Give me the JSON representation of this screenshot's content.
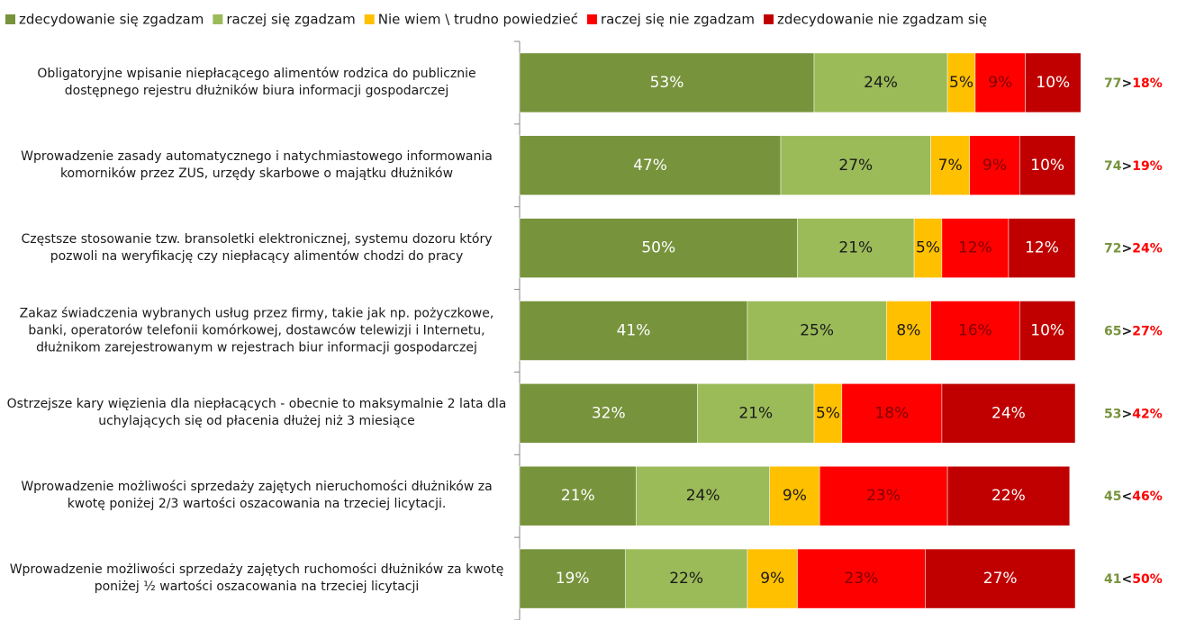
{
  "chart_data": {
    "type": "stacked_barh",
    "categories": [
      "Obligatoryjne wpisanie niepłacącego alimentów rodzica do publicznie dostępnego rejestru dłużników biura informacji gospodarczej",
      "Wprowadzenie zasady automatycznego i natychmiastowego informowania komorników przez ZUS, urzędy skarbowe o majątku dłużników",
      "Częstsze stosowanie tzw. bransoletki elektronicznej, systemu dozoru który pozwoli na weryfikację czy niepłacący alimentów chodzi do pracy",
      "Zakaz świadczenia wybranych usług przez firmy, takie jak np. pożyczkowe, banki, operatorów telefonii komórkowej, dostawców telewizji i Internetu, dłużnikom zarejestrowanym w rejestrach biur informacji gospodarczej",
      "Ostrzejsze kary  więzienia dla niepłacących - obecnie to maksymalnie 2 lata dla uchylających się od płacenia dłużej niż 3 miesiące",
      "Wprowadzenie możliwości sprzedaży zajętych nieruchomości dłużników za kwotę poniżej 2/3 wartości oszacowania na trzeciej licytacji.",
      "Wprowadzenie możliwości sprzedaży zajętych ruchomości dłużników za kwotę poniżej ½ wartości oszacowania na trzeciej licytacji"
    ],
    "series": [
      {
        "name": "zdecydowanie się zgadzam",
        "color": "#77933c",
        "label_color": "#ffffff",
        "values": [
          53,
          47,
          50,
          41,
          32,
          21,
          19
        ],
        "value_labels": [
          "53%",
          "47%",
          "50%",
          "41%",
          "32%",
          "21%",
          "19%"
        ]
      },
      {
        "name": "raczej się zgadzam",
        "color": "#9bbb59",
        "label_color": "#1a1a1a",
        "values": [
          24,
          27,
          21,
          25,
          21,
          24,
          22
        ],
        "value_labels": [
          "24%",
          "27%",
          "21%",
          "25%",
          "21%",
          "24%",
          "22%"
        ]
      },
      {
        "name": "Nie wiem \\ trudno powiedzieć",
        "color": "#ffc000",
        "label_color": "#1a1a1a",
        "values": [
          5,
          7,
          5,
          8,
          5,
          9,
          9
        ],
        "value_labels": [
          "5%",
          "7%",
          "5%",
          "8%",
          "5%",
          "9%",
          "9%"
        ]
      },
      {
        "name": "raczej się nie zgadzam",
        "color": "#ff0000",
        "label_color": "#7f0000",
        "values": [
          9,
          9,
          12,
          16,
          18,
          23,
          23
        ],
        "value_labels": [
          "9%",
          "9%",
          "12%",
          "16%",
          "18%",
          "23%",
          "23%"
        ]
      },
      {
        "name": "zdecydowanie nie zgadzam się",
        "color": "#c00000",
        "label_color": "#ffffff",
        "values": [
          10,
          10,
          12,
          10,
          24,
          22,
          27
        ],
        "value_labels": [
          "10%",
          "10%",
          "12%",
          "10%",
          "24%",
          "22%",
          "27%"
        ]
      }
    ],
    "xlim": [
      0,
      100
    ],
    "net": [
      {
        "agree": 77,
        "sign": ">",
        "disagree": "18%"
      },
      {
        "agree": 74,
        "sign": ">",
        "disagree": "19%"
      },
      {
        "agree": 72,
        "sign": ">",
        "disagree": "24%"
      },
      {
        "agree": 65,
        "sign": ">",
        "disagree": "27%"
      },
      {
        "agree": 53,
        "sign": ">",
        "disagree": "42%"
      },
      {
        "agree": 45,
        "sign": "<",
        "disagree": "46%"
      },
      {
        "agree": 41,
        "sign": "<",
        "disagree": "50%"
      }
    ],
    "net_colors": {
      "agree": "#77933c",
      "sign": "#1a1a1a",
      "disagree": "#ff0000"
    }
  }
}
